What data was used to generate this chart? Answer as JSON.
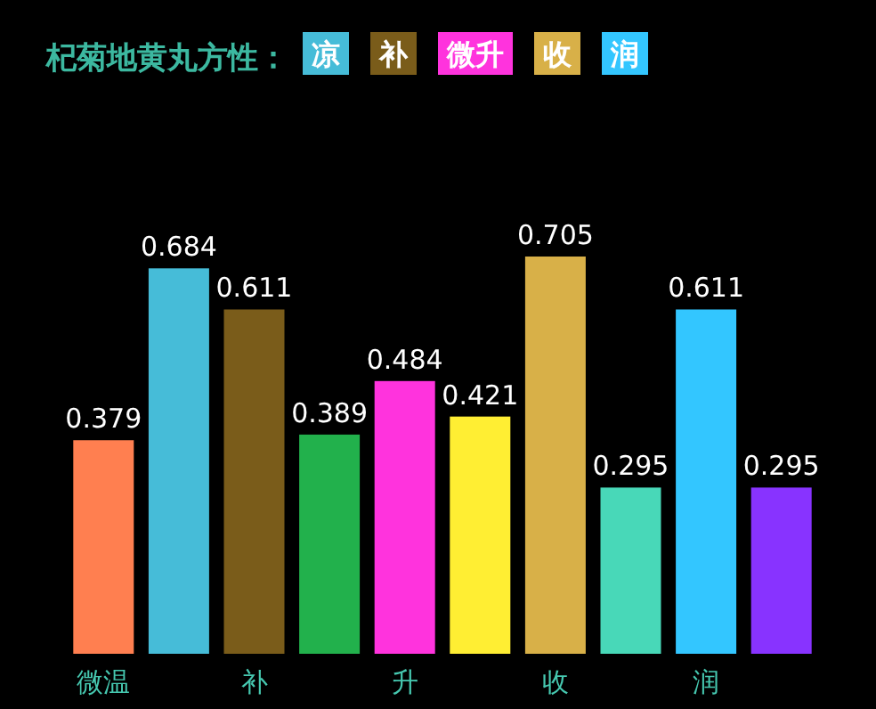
{
  "chart_data": {
    "type": "bar",
    "title": "杞菊地黄丸方性：",
    "annotations": [
      "凉",
      "补",
      "微升",
      "收",
      "润"
    ],
    "categories": [
      "微温",
      null,
      "补",
      null,
      "升",
      null,
      "收",
      null,
      "润",
      null
    ],
    "values": [
      0.379,
      0.684,
      0.611,
      0.389,
      0.484,
      0.421,
      0.705,
      0.295,
      0.611,
      0.295
    ],
    "colors": [
      "#ff7f50",
      "#46bcd8",
      "#7a5c1a",
      "#22b14c",
      "#ff33dd",
      "#ffee33",
      "#d8b048",
      "#48d8b8",
      "#33c6ff",
      "#8833ff"
    ],
    "data_labels": true
  }
}
